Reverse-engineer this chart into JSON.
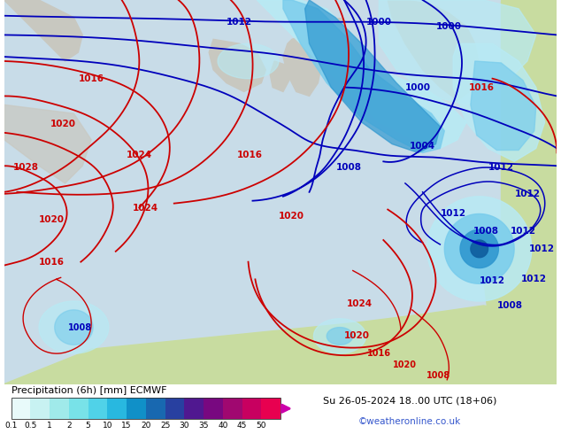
{
  "title_left": "Precipitation (6h) [mm] ECMWF",
  "title_right": "Su 26-05-2024 18..00 UTC (18+06)",
  "subtitle_right": "©weatheronline.co.uk",
  "colorbar_labels": [
    "0.1",
    "0.5",
    "1",
    "2",
    "5",
    "10",
    "15",
    "20",
    "25",
    "30",
    "35",
    "40",
    "45",
    "50"
  ],
  "colorbar_colors": [
    "#e8fafa",
    "#c8f2f2",
    "#a0eaea",
    "#78e2e8",
    "#50d2e8",
    "#28b8e0",
    "#1090c8",
    "#1868b0",
    "#2840a0",
    "#501890",
    "#780880",
    "#a00870",
    "#c80060",
    "#e80050"
  ],
  "arrow_color": "#cc00aa",
  "figsize": [
    6.34,
    4.9
  ],
  "dpi": 100,
  "map_ocean": "#c8dce8",
  "map_land_green": "#c8dca0",
  "map_land_gray": "#c8c8c0",
  "map_border": "#808080",
  "blue_isobar": "#0000bb",
  "red_isobar": "#cc0000",
  "precip_light": "#b8eaf4",
  "precip_mid": "#78ccec",
  "precip_dark": "#3098d0",
  "precip_deep": "#1060a0",
  "precip_vdark": "#082060"
}
